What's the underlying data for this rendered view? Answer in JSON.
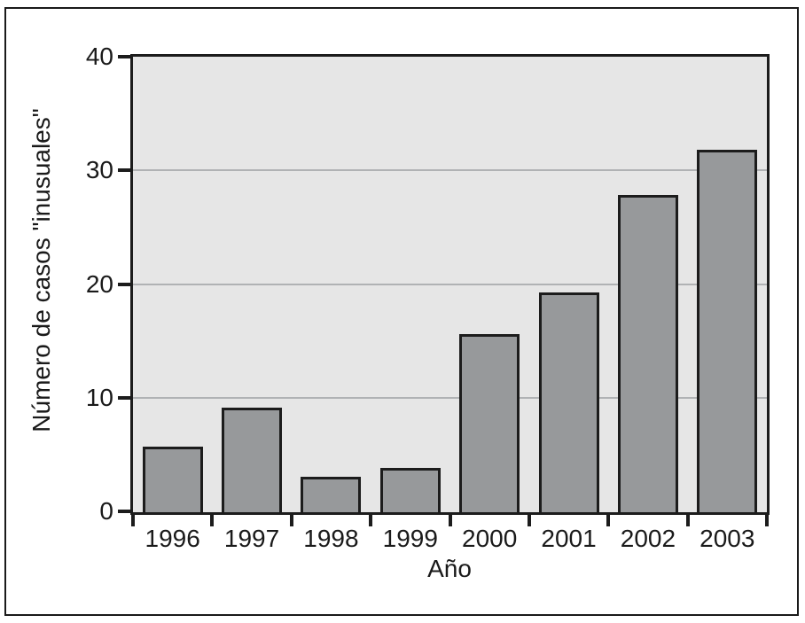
{
  "figure": {
    "background": "#ffffff",
    "border_color": "#1a1a1a",
    "text_color": "#1a1a1a"
  },
  "chart_data": {
    "type": "bar",
    "title": "",
    "categories": [
      "1996",
      "1997",
      "1998",
      "1999",
      "2000",
      "2001",
      "2002",
      "2003"
    ],
    "values": [
      5.8,
      9.2,
      3.1,
      3.9,
      15.7,
      19.3,
      27.9,
      31.9
    ],
    "xlabel": "Año",
    "ylabel": "Número de casos \"inusuales\"",
    "ylim": [
      0,
      40
    ],
    "yticks": [
      0,
      10,
      20,
      30,
      40
    ],
    "gridline_values": [
      10,
      20,
      30
    ],
    "grid": "horizontal-only",
    "legend": "none",
    "plot_bg_color": "#e6e6e6",
    "bar_fill_color": "#97999b",
    "bar_border_color": "#1c1c1c",
    "gridline_color": "#b0b2b4",
    "axis_color": "#1c1c1c"
  }
}
